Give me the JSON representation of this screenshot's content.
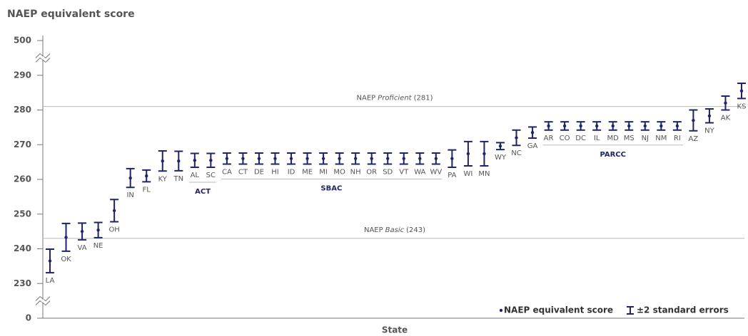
{
  "chart_data": {
    "type": "errorbar",
    "title": "NAEP equivalent score",
    "x_label": "State",
    "categories": [
      "LA",
      "OK",
      "VA",
      "NE",
      "OH",
      "IN",
      "FL",
      "KY",
      "TN",
      "AL",
      "SC",
      "CA",
      "CT",
      "DE",
      "HI",
      "ID",
      "ME",
      "MI",
      "MO",
      "NH",
      "OR",
      "SD",
      "VT",
      "WA",
      "WV",
      "PA",
      "WI",
      "MN",
      "WY",
      "NC",
      "GA",
      "AR",
      "CO",
      "DC",
      "IL",
      "MD",
      "MS",
      "NJ",
      "NM",
      "RI",
      "AZ",
      "NY",
      "AK",
      "KS"
    ],
    "series": [
      {
        "name": "NAEP equivalent score",
        "error_name": "±2 standard errors",
        "color": "#1f2466",
        "values": [
          236.5,
          243.3,
          245,
          245.4,
          251,
          260.4,
          261,
          265.3,
          265.3,
          265.5,
          265.5,
          266,
          266,
          266,
          266,
          266,
          266,
          266,
          266,
          266,
          266,
          266,
          266,
          266,
          266,
          266,
          267.4,
          267.4,
          269.6,
          272,
          273.5,
          275.4,
          275.4,
          275.4,
          275.4,
          275.4,
          275.4,
          275.4,
          275.4,
          275.4,
          277,
          278.3,
          282,
          285.5
        ],
        "errors": [
          3.4,
          4,
          2.4,
          2.2,
          3.2,
          2.7,
          1.7,
          2.9,
          2.8,
          2,
          2,
          1.6,
          1.6,
          1.6,
          1.6,
          1.6,
          1.6,
          1.6,
          1.6,
          1.6,
          1.6,
          1.6,
          1.6,
          1.6,
          1.6,
          2.5,
          3.5,
          3.5,
          1,
          2.2,
          1.6,
          1.2,
          1.2,
          1.2,
          1.2,
          1.2,
          1.2,
          1.2,
          1.2,
          1.2,
          3,
          2,
          2,
          2.2
        ]
      }
    ],
    "ylim": [
      0,
      500
    ],
    "yticks": [
      0,
      230,
      240,
      250,
      260,
      270,
      280,
      290,
      500
    ],
    "axis_break": true,
    "reference_lines": [
      {
        "value": 281,
        "label_parts": [
          "NAEP",
          "Proficient",
          "(281)"
        ]
      },
      {
        "value": 243,
        "label_parts": [
          "NAEP",
          "Basic",
          "(243)"
        ]
      }
    ],
    "groups": [
      {
        "name": "ACT",
        "from": "AL",
        "to": "SC"
      },
      {
        "name": "SBAC",
        "from": "CA",
        "to": "WV"
      },
      {
        "name": "PARCC",
        "from": "AR",
        "to": "RI"
      }
    ]
  }
}
